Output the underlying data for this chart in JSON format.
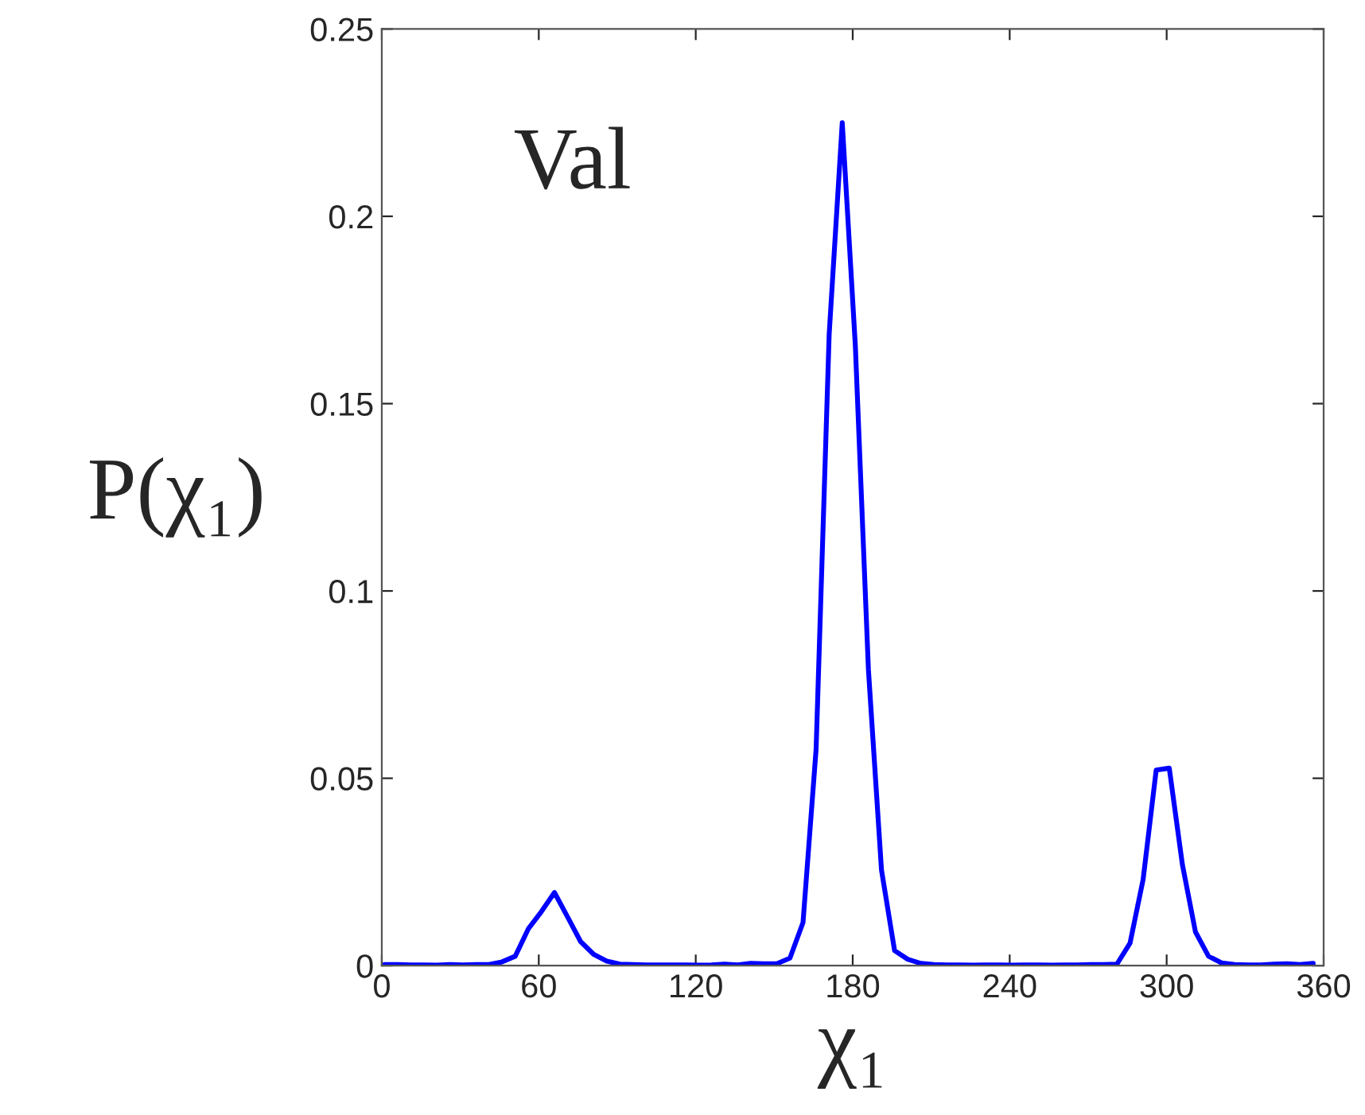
{
  "chart_data": {
    "type": "line",
    "xlabel": "χ₁",
    "ylabel": "P(χ₁)",
    "annotations": [
      "Val"
    ],
    "x": [
      1,
      6,
      11,
      16,
      21,
      26,
      31,
      36,
      41,
      46,
      51,
      56,
      61,
      66,
      71,
      76,
      81,
      86,
      91,
      96,
      101,
      106,
      111,
      116,
      121,
      126,
      131,
      136,
      141,
      146,
      151,
      156,
      161,
      166,
      171,
      176,
      181,
      186,
      191,
      196,
      201,
      206,
      211,
      216,
      221,
      226,
      231,
      236,
      241,
      246,
      251,
      256,
      261,
      266,
      271,
      276,
      281,
      286,
      291,
      296,
      301,
      306,
      311,
      316,
      321,
      326,
      331,
      336,
      341,
      346,
      351,
      356
    ],
    "series": [
      {
        "color": "#0000ff",
        "values": [
          0.0003,
          0.0003,
          0.0002,
          0.0002,
          0.0001,
          0.0003,
          0.0002,
          0.0003,
          0.0003,
          0.001,
          0.0025,
          0.0098,
          0.0144,
          0.0195,
          0.013,
          0.0064,
          0.003,
          0.0012,
          0.0004,
          0.0003,
          0.0002,
          0.0002,
          0.0002,
          0.0002,
          0.0001,
          0.0002,
          0.0004,
          0.0002,
          0.0006,
          0.0005,
          0.0005,
          0.002,
          0.0115,
          0.0577,
          0.1685,
          0.225,
          0.1655,
          0.079,
          0.0255,
          0.004,
          0.0017,
          0.0006,
          0.0003,
          0.0002,
          0.0002,
          0.0001,
          0.0002,
          0.0002,
          0.0001,
          0.0002,
          0.0002,
          0.0001,
          0.0002,
          0.0002,
          0.0003,
          0.0003,
          0.0004,
          0.006,
          0.023,
          0.0522,
          0.0527,
          0.027,
          0.009,
          0.0025,
          0.0007,
          0.0003,
          0.0002,
          0.0002,
          0.0004,
          0.0005,
          0.0003,
          0.0006
        ]
      }
    ],
    "xlim": [
      0,
      360
    ],
    "xticks": [
      0,
      60,
      120,
      180,
      240,
      300,
      360
    ],
    "ylim": [
      0,
      0.25
    ],
    "yticks": [
      0,
      0.05,
      0.1,
      0.15,
      0.2,
      0.25
    ],
    "grid": false,
    "legend": false,
    "marker": "none",
    "line_style": "solid"
  }
}
